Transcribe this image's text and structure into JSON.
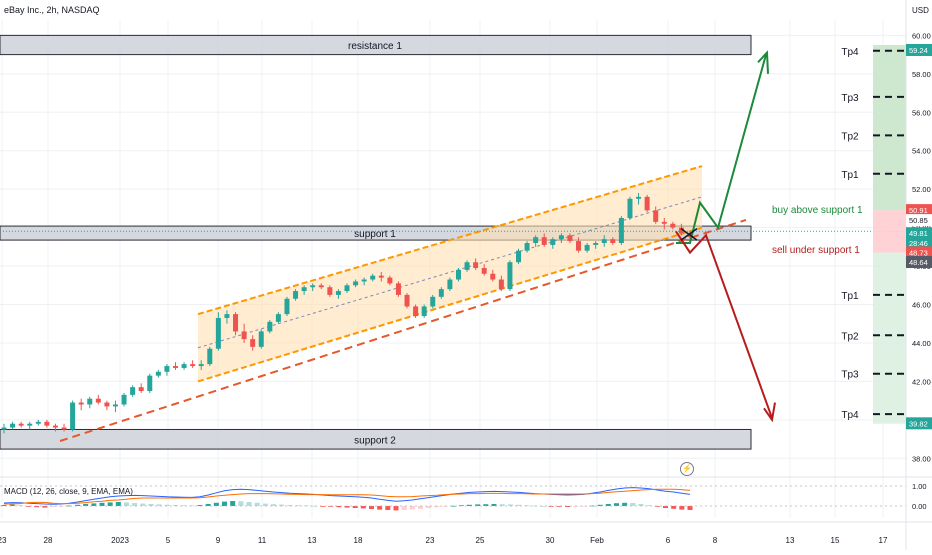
{
  "header": {
    "symbol": "eBay Inc., 2h, NASDAQ",
    "currency": "USD"
  },
  "colors": {
    "up": "#26a69a",
    "down": "#ef5350",
    "channel": "#ff9800",
    "channel_fill": "#ffe0b2",
    "zone_fill": "#d1d4dc",
    "bull": "#1b8a3a",
    "bear": "#b71c1c",
    "tp_green": "#c8e6c9",
    "tp_red": "#ffcdd2",
    "macd": "#2962ff",
    "signal": "#ff6d00"
  },
  "chart_data": [
    {
      "type": "candlestick",
      "title": "eBay Inc., 2h, NASDAQ",
      "ylim": [
        37.6,
        60.8
      ],
      "y_ticks": [
        38.0,
        40.0,
        42.0,
        44.0,
        46.0,
        48.0,
        50.0,
        52.0,
        54.0,
        56.0,
        58.0,
        60.0
      ],
      "x_ticks": [
        "23",
        "28",
        "2023",
        "5",
        "9",
        "11",
        "13",
        "18",
        "23",
        "25",
        "30",
        "Feb",
        "6",
        "8",
        "13",
        "15",
        "17"
      ],
      "candles": [
        {
          "o": 39.5,
          "h": 39.8,
          "l": 39.3,
          "c": 39.6
        },
        {
          "o": 39.6,
          "h": 39.9,
          "l": 39.5,
          "c": 39.8
        },
        {
          "o": 39.8,
          "h": 39.9,
          "l": 39.6,
          "c": 39.7
        },
        {
          "o": 39.7,
          "h": 39.9,
          "l": 39.5,
          "c": 39.8
        },
        {
          "o": 39.8,
          "h": 40.0,
          "l": 39.7,
          "c": 39.9
        },
        {
          "o": 39.9,
          "h": 40.0,
          "l": 39.6,
          "c": 39.7
        },
        {
          "o": 39.7,
          "h": 39.8,
          "l": 39.4,
          "c": 39.6
        },
        {
          "o": 39.6,
          "h": 39.8,
          "l": 39.4,
          "c": 39.5
        },
        {
          "o": 39.5,
          "h": 41.0,
          "l": 39.4,
          "c": 40.9
        },
        {
          "o": 40.9,
          "h": 41.1,
          "l": 40.5,
          "c": 40.8
        },
        {
          "o": 40.8,
          "h": 41.2,
          "l": 40.6,
          "c": 41.1
        },
        {
          "o": 41.1,
          "h": 41.3,
          "l": 40.8,
          "c": 40.9
        },
        {
          "o": 40.9,
          "h": 41.0,
          "l": 40.5,
          "c": 40.7
        },
        {
          "o": 40.7,
          "h": 41.0,
          "l": 40.4,
          "c": 40.8
        },
        {
          "o": 40.8,
          "h": 41.4,
          "l": 40.7,
          "c": 41.3
        },
        {
          "o": 41.3,
          "h": 41.8,
          "l": 41.2,
          "c": 41.7
        },
        {
          "o": 41.7,
          "h": 41.9,
          "l": 41.4,
          "c": 41.5
        },
        {
          "o": 41.5,
          "h": 42.4,
          "l": 41.4,
          "c": 42.3
        },
        {
          "o": 42.3,
          "h": 42.6,
          "l": 42.2,
          "c": 42.5
        },
        {
          "o": 42.5,
          "h": 42.9,
          "l": 42.3,
          "c": 42.8
        },
        {
          "o": 42.8,
          "h": 43.0,
          "l": 42.6,
          "c": 42.7
        },
        {
          "o": 42.7,
          "h": 43.0,
          "l": 42.6,
          "c": 42.9
        },
        {
          "o": 42.9,
          "h": 43.1,
          "l": 42.7,
          "c": 42.8
        },
        {
          "o": 42.8,
          "h": 43.1,
          "l": 42.6,
          "c": 42.9
        },
        {
          "o": 42.9,
          "h": 43.8,
          "l": 42.8,
          "c": 43.7
        },
        {
          "o": 43.7,
          "h": 45.6,
          "l": 43.6,
          "c": 45.3
        },
        {
          "o": 45.3,
          "h": 45.7,
          "l": 45.0,
          "c": 45.5
        },
        {
          "o": 45.5,
          "h": 45.6,
          "l": 44.4,
          "c": 44.6
        },
        {
          "o": 44.6,
          "h": 45.0,
          "l": 44.0,
          "c": 44.2
        },
        {
          "o": 44.2,
          "h": 44.4,
          "l": 43.6,
          "c": 43.8
        },
        {
          "o": 43.8,
          "h": 44.7,
          "l": 43.7,
          "c": 44.6
        },
        {
          "o": 44.6,
          "h": 45.2,
          "l": 44.5,
          "c": 45.1
        },
        {
          "o": 45.1,
          "h": 45.6,
          "l": 45.0,
          "c": 45.5
        },
        {
          "o": 45.5,
          "h": 46.4,
          "l": 45.4,
          "c": 46.3
        },
        {
          "o": 46.3,
          "h": 46.8,
          "l": 46.2,
          "c": 46.7
        },
        {
          "o": 46.7,
          "h": 47.0,
          "l": 46.5,
          "c": 46.9
        },
        {
          "o": 46.9,
          "h": 47.1,
          "l": 46.7,
          "c": 47.0
        },
        {
          "o": 47.0,
          "h": 47.1,
          "l": 46.8,
          "c": 46.9
        },
        {
          "o": 46.9,
          "h": 47.0,
          "l": 46.4,
          "c": 46.5
        },
        {
          "o": 46.5,
          "h": 46.8,
          "l": 46.3,
          "c": 46.7
        },
        {
          "o": 46.7,
          "h": 47.1,
          "l": 46.6,
          "c": 47.0
        },
        {
          "o": 47.0,
          "h": 47.3,
          "l": 46.9,
          "c": 47.2
        },
        {
          "o": 47.2,
          "h": 47.4,
          "l": 47.0,
          "c": 47.3
        },
        {
          "o": 47.3,
          "h": 47.6,
          "l": 47.2,
          "c": 47.5
        },
        {
          "o": 47.5,
          "h": 47.7,
          "l": 47.2,
          "c": 47.4
        },
        {
          "o": 47.4,
          "h": 47.5,
          "l": 47.0,
          "c": 47.1
        },
        {
          "o": 47.1,
          "h": 47.2,
          "l": 46.4,
          "c": 46.5
        },
        {
          "o": 46.5,
          "h": 46.6,
          "l": 45.8,
          "c": 45.9
        },
        {
          "o": 45.9,
          "h": 46.0,
          "l": 45.3,
          "c": 45.4
        },
        {
          "o": 45.4,
          "h": 46.0,
          "l": 45.3,
          "c": 45.9
        },
        {
          "o": 45.9,
          "h": 46.5,
          "l": 45.8,
          "c": 46.4
        },
        {
          "o": 46.4,
          "h": 46.9,
          "l": 46.3,
          "c": 46.8
        },
        {
          "o": 46.8,
          "h": 47.4,
          "l": 46.7,
          "c": 47.3
        },
        {
          "o": 47.3,
          "h": 47.9,
          "l": 47.2,
          "c": 47.8
        },
        {
          "o": 47.8,
          "h": 48.3,
          "l": 47.7,
          "c": 48.2
        },
        {
          "o": 48.2,
          "h": 48.4,
          "l": 47.8,
          "c": 47.9
        },
        {
          "o": 47.9,
          "h": 48.1,
          "l": 47.5,
          "c": 47.6
        },
        {
          "o": 47.6,
          "h": 47.8,
          "l": 47.2,
          "c": 47.3
        },
        {
          "o": 47.3,
          "h": 47.5,
          "l": 46.7,
          "c": 46.8
        },
        {
          "o": 46.8,
          "h": 48.3,
          "l": 46.7,
          "c": 48.2
        },
        {
          "o": 48.2,
          "h": 48.9,
          "l": 48.1,
          "c": 48.8
        },
        {
          "o": 48.8,
          "h": 49.3,
          "l": 48.7,
          "c": 49.2
        },
        {
          "o": 49.2,
          "h": 49.6,
          "l": 49.0,
          "c": 49.5
        },
        {
          "o": 49.5,
          "h": 49.7,
          "l": 49.0,
          "c": 49.1
        },
        {
          "o": 49.1,
          "h": 49.5,
          "l": 48.9,
          "c": 49.4
        },
        {
          "o": 49.4,
          "h": 49.7,
          "l": 49.2,
          "c": 49.6
        },
        {
          "o": 49.6,
          "h": 49.7,
          "l": 49.2,
          "c": 49.3
        },
        {
          "o": 49.3,
          "h": 49.5,
          "l": 48.7,
          "c": 48.8
        },
        {
          "o": 48.8,
          "h": 49.2,
          "l": 48.7,
          "c": 49.1
        },
        {
          "o": 49.1,
          "h": 49.3,
          "l": 48.9,
          "c": 49.2
        },
        {
          "o": 49.2,
          "h": 49.6,
          "l": 49.0,
          "c": 49.4
        },
        {
          "o": 49.4,
          "h": 49.5,
          "l": 49.1,
          "c": 49.2
        },
        {
          "o": 49.2,
          "h": 50.6,
          "l": 49.1,
          "c": 50.5
        },
        {
          "o": 50.5,
          "h": 51.6,
          "l": 50.4,
          "c": 51.5
        },
        {
          "o": 51.5,
          "h": 51.8,
          "l": 51.2,
          "c": 51.6
        },
        {
          "o": 51.6,
          "h": 51.7,
          "l": 50.8,
          "c": 50.9
        },
        {
          "o": 50.9,
          "h": 51.1,
          "l": 50.2,
          "c": 50.3
        },
        {
          "o": 50.3,
          "h": 50.5,
          "l": 49.9,
          "c": 50.2
        },
        {
          "o": 50.2,
          "h": 50.3,
          "l": 49.9,
          "c": 50.0
        },
        {
          "o": 50.0,
          "h": 50.2,
          "l": 49.6,
          "c": 49.7
        },
        {
          "o": 49.7,
          "h": 49.8,
          "l": 49.4,
          "c": 49.5
        }
      ],
      "zones": [
        {
          "label": "resistance 1",
          "low": 59.0,
          "high": 60.0
        },
        {
          "label": "support 1",
          "low": 49.46,
          "high": 50.08
        },
        {
          "label": "support 2",
          "low": 38.48,
          "high": 39.5
        }
      ],
      "annotations": {
        "buy": "buy above support 1",
        "sell": "sell under support 1"
      },
      "targets_up": [
        {
          "label": "Tp4",
          "price": 59.2
        },
        {
          "label": "Tp3",
          "price": 56.8
        },
        {
          "label": "Tp2",
          "price": 54.8
        },
        {
          "label": "Tp1",
          "price": 52.8
        }
      ],
      "targets_down": [
        {
          "label": "Tp1",
          "price": 46.5
        },
        {
          "label": "Tp2",
          "price": 44.4
        },
        {
          "label": "Tp3",
          "price": 42.4
        },
        {
          "label": "Tp4",
          "price": 40.3
        }
      ],
      "price_labels": [
        {
          "text": "59.24",
          "price": 59.24,
          "color": "#26a69a",
          "fg": "#ffffff"
        },
        {
          "text": "50.91",
          "price": 50.91,
          "color": "#ef5350",
          "fg": "#ffffff"
        },
        {
          "text": "50.85",
          "price": 50.39,
          "color": "#ffffff",
          "fg": "#131722"
        },
        {
          "text": "49.81",
          "price": 49.71,
          "color": "#26a69a",
          "fg": "#ffffff"
        },
        {
          "text": "28:46",
          "price": 49.21,
          "color": "#26a69a",
          "fg": "#ffffff"
        },
        {
          "text": "48.73",
          "price": 48.71,
          "color": "#ef5350",
          "fg": "#ffffff"
        },
        {
          "text": "48.64",
          "price": 48.21,
          "color": "#555b66",
          "fg": "#ffffff"
        },
        {
          "text": "39.82",
          "price": 39.82,
          "color": "#26a69a",
          "fg": "#ffffff"
        }
      ]
    },
    {
      "type": "bar",
      "title": "MACD (12, 26, close, 9, EMA, EMA)",
      "ylim": [
        -0.6,
        1.3
      ],
      "y_ticks": [
        "1.00",
        "0.00"
      ],
      "series": [
        {
          "name": "Histogram",
          "values": [
            0.05,
            0.07,
            0.04,
            -0.03,
            -0.06,
            -0.08,
            -0.05,
            -0.02,
            0.02,
            0.06,
            0.1,
            0.13,
            0.16,
            0.18,
            0.2,
            0.18,
            0.15,
            0.12,
            0.1,
            0.08,
            0.06,
            0.05,
            0.04,
            0.03,
            0.05,
            0.1,
            0.16,
            0.22,
            0.25,
            0.24,
            0.2,
            0.16,
            0.12,
            0.09,
            0.07,
            0.05,
            0.04,
            0.03,
            0.01,
            -0.02,
            -0.04,
            -0.06,
            -0.08,
            -0.1,
            -0.12,
            -0.15,
            -0.18,
            -0.2,
            -0.22,
            -0.2,
            -0.17,
            -0.14,
            -0.1,
            -0.06,
            -0.03,
            0.01,
            0.04,
            0.06,
            0.08,
            0.09,
            0.1,
            0.09,
            0.08,
            0.06,
            0.04,
            0.02,
            0.0,
            -0.02,
            -0.04,
            -0.05,
            -0.04,
            -0.02,
            0.02,
            0.06,
            0.1,
            0.14,
            0.16,
            0.15,
            0.1,
            0.04,
            -0.04,
            -0.1,
            -0.14,
            -0.18,
            -0.2
          ]
        }
      ]
    }
  ],
  "macd": {
    "macd_line": [
      0.15,
      0.17,
      0.16,
      0.14,
      0.12,
      0.1,
      0.09,
      0.1,
      0.14,
      0.2,
      0.27,
      0.34,
      0.4,
      0.46,
      0.5,
      0.52,
      0.53,
      0.52,
      0.5,
      0.48,
      0.46,
      0.45,
      0.44,
      0.43,
      0.46,
      0.55,
      0.66,
      0.76,
      0.82,
      0.84,
      0.82,
      0.78,
      0.74,
      0.7,
      0.67,
      0.64,
      0.62,
      0.6,
      0.58,
      0.55,
      0.52,
      0.5,
      0.48,
      0.46,
      0.44,
      0.4,
      0.34,
      0.28,
      0.24,
      0.26,
      0.3,
      0.36,
      0.42,
      0.48,
      0.54,
      0.6,
      0.64,
      0.68,
      0.7,
      0.72,
      0.73,
      0.72,
      0.7,
      0.68,
      0.65,
      0.62,
      0.6,
      0.58,
      0.56,
      0.55,
      0.56,
      0.58,
      0.64,
      0.7,
      0.78,
      0.85,
      0.9,
      0.92,
      0.9,
      0.86,
      0.8,
      0.74,
      0.7,
      0.64,
      0.58
    ],
    "signal_line": [
      0.1,
      0.1,
      0.12,
      0.17,
      0.18,
      0.18,
      0.14,
      0.12,
      0.12,
      0.14,
      0.17,
      0.21,
      0.24,
      0.28,
      0.3,
      0.34,
      0.38,
      0.4,
      0.4,
      0.4,
      0.4,
      0.4,
      0.4,
      0.4,
      0.41,
      0.45,
      0.5,
      0.54,
      0.57,
      0.6,
      0.62,
      0.62,
      0.62,
      0.61,
      0.6,
      0.59,
      0.58,
      0.57,
      0.57,
      0.57,
      0.56,
      0.56,
      0.56,
      0.56,
      0.56,
      0.55,
      0.52,
      0.48,
      0.46,
      0.46,
      0.47,
      0.5,
      0.52,
      0.54,
      0.57,
      0.59,
      0.6,
      0.62,
      0.62,
      0.63,
      0.63,
      0.63,
      0.62,
      0.62,
      0.61,
      0.6,
      0.6,
      0.6,
      0.6,
      0.6,
      0.6,
      0.6,
      0.62,
      0.64,
      0.68,
      0.71,
      0.74,
      0.77,
      0.8,
      0.82,
      0.84,
      0.84,
      0.84,
      0.82,
      0.78
    ]
  }
}
